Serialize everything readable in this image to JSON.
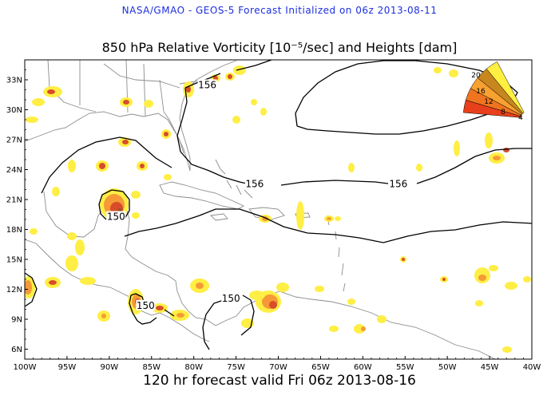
{
  "header": {
    "line": "NASA/GMAO - GEOS-5 Forecast Initialized on 06z 2013-08-11",
    "color": "#1c2ee0"
  },
  "title": {
    "text": "850 hPa Relative Vorticity [10⁻⁵/sec] and Heights [dam]"
  },
  "footer": {
    "text": "120 hr forecast valid Fri 06z 2013-08-16"
  },
  "map": {
    "lon_range": [
      -100,
      -40
    ],
    "lat_range": [
      5,
      35
    ],
    "lon_ticks": [
      {
        "value": -100,
        "label": "100W"
      },
      {
        "value": -95,
        "label": "95W"
      },
      {
        "value": -90,
        "label": "90W"
      },
      {
        "value": -85,
        "label": "85W"
      },
      {
        "value": -80,
        "label": "80W"
      },
      {
        "value": -75,
        "label": "75W"
      },
      {
        "value": -70,
        "label": "70W"
      },
      {
        "value": -65,
        "label": "65W"
      },
      {
        "value": -60,
        "label": "60W"
      },
      {
        "value": -55,
        "label": "55W"
      },
      {
        "value": -50,
        "label": "50W"
      },
      {
        "value": -45,
        "label": "45W"
      },
      {
        "value": -40,
        "label": "40W"
      }
    ],
    "lat_ticks": [
      {
        "value": 6,
        "label": "6N"
      },
      {
        "value": 9,
        "label": "9N"
      },
      {
        "value": 12,
        "label": "12N"
      },
      {
        "value": 15,
        "label": "15N"
      },
      {
        "value": 18,
        "label": "18N"
      },
      {
        "value": 21,
        "label": "21N"
      },
      {
        "value": 24,
        "label": "24N"
      },
      {
        "value": 27,
        "label": "27N"
      },
      {
        "value": 30,
        "label": "30N"
      },
      {
        "value": 33,
        "label": "33N"
      }
    ],
    "contour_labels": [
      {
        "text": "156",
        "lon": -78.4,
        "lat": 32.4
      },
      {
        "text": "156",
        "lon": -72.8,
        "lat": 22.5
      },
      {
        "text": "156",
        "lon": -55.8,
        "lat": 22.5
      },
      {
        "text": "150",
        "lon": -89.2,
        "lat": 19.2
      },
      {
        "text": "150",
        "lon": -85.7,
        "lat": 10.3
      },
      {
        "text": "150",
        "lon": -75.6,
        "lat": 11.0
      }
    ],
    "colorbar": {
      "labels": [
        "20",
        "16",
        "12",
        "8",
        "4"
      ],
      "colors": [
        "#e8401c",
        "#f07420",
        "#f8a030",
        "#c8861e",
        "#ffef40"
      ]
    },
    "colors": {
      "yellow": "#ffee44",
      "orange": "#f59a36",
      "red": "#d84c2a",
      "brown": "#9a5224",
      "coast": "#8c8c8c",
      "contour": "#000000"
    }
  }
}
